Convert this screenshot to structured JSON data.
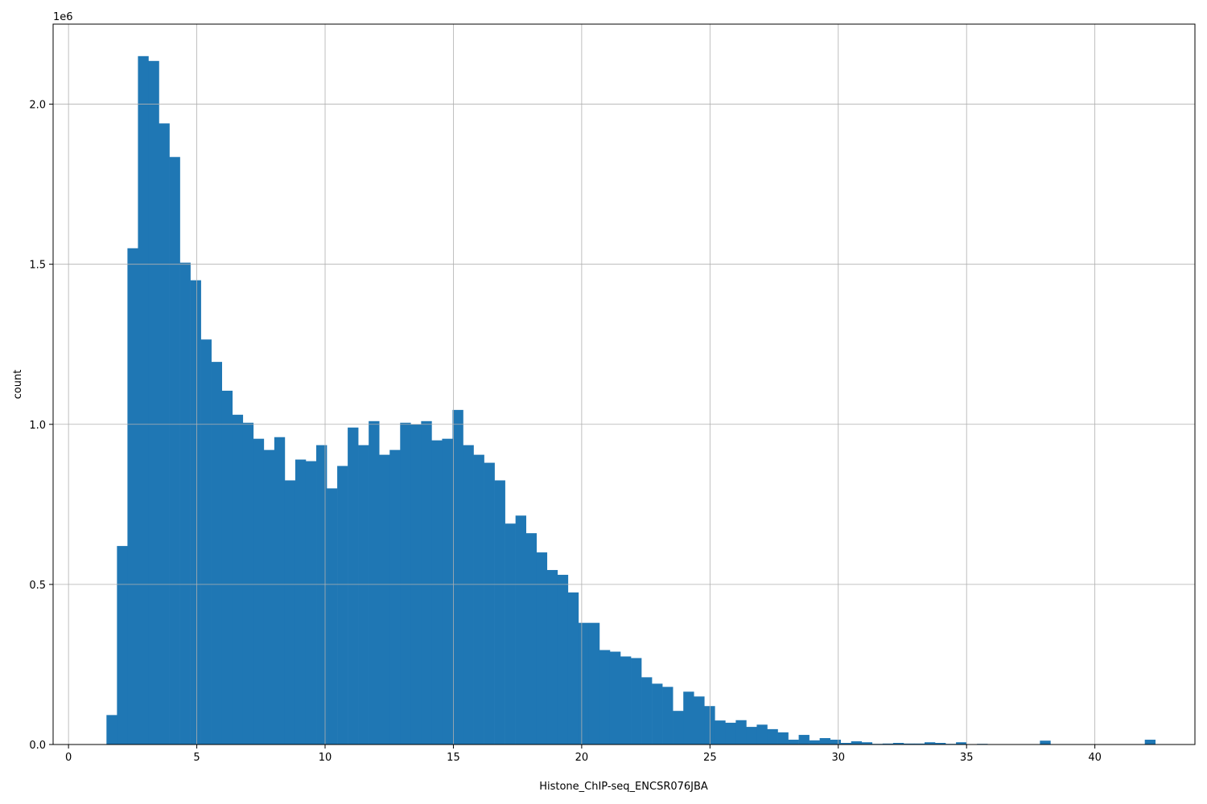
{
  "chart_data": {
    "type": "bar",
    "title": "",
    "xlabel": "Histone_ChIP-seq_ENCSR076JBA",
    "ylabel": "count",
    "y_offset_label": "1e6",
    "xlim": [
      -0.6,
      43.9
    ],
    "ylim": [
      0,
      2250000
    ],
    "grid": true,
    "bar_color": "#1f77b4",
    "bin_start": 1.48,
    "bin_width": 0.40875,
    "xticks": [
      0,
      5,
      10,
      15,
      20,
      25,
      30,
      35,
      40
    ],
    "xtick_labels": [
      "0",
      "5",
      "10",
      "15",
      "20",
      "25",
      "30",
      "35",
      "40"
    ],
    "yticks": [
      0,
      500000,
      1000000,
      1500000,
      2000000
    ],
    "ytick_labels": [
      "0.0",
      "0.5",
      "1.0",
      "1.5",
      "2.0"
    ],
    "values": [
      92000,
      620000,
      1550000,
      2150000,
      2135000,
      1940000,
      1835000,
      1505000,
      1450000,
      1265000,
      1195000,
      1105000,
      1030000,
      1005000,
      955000,
      920000,
      960000,
      825000,
      890000,
      885000,
      935000,
      800000,
      870000,
      990000,
      935000,
      1010000,
      905000,
      920000,
      1005000,
      1000000,
      1010000,
      950000,
      955000,
      1045000,
      935000,
      905000,
      880000,
      825000,
      690000,
      715000,
      660000,
      600000,
      545000,
      530000,
      475000,
      380000,
      380000,
      295000,
      290000,
      275000,
      270000,
      210000,
      190000,
      180000,
      105000,
      165000,
      150000,
      120000,
      75000,
      68000,
      76000,
      55000,
      62000,
      48000,
      38000,
      15000,
      30000,
      13000,
      20000,
      15000,
      5000,
      10000,
      7000,
      2000,
      3000,
      5000,
      3000,
      3000,
      7000,
      5000,
      2000,
      7000,
      1000,
      2000,
      1000,
      1000,
      1000,
      1000,
      1000,
      12000,
      1000,
      1000,
      1000,
      1000,
      1000,
      1000,
      1000,
      1000,
      1000,
      15000
    ]
  }
}
